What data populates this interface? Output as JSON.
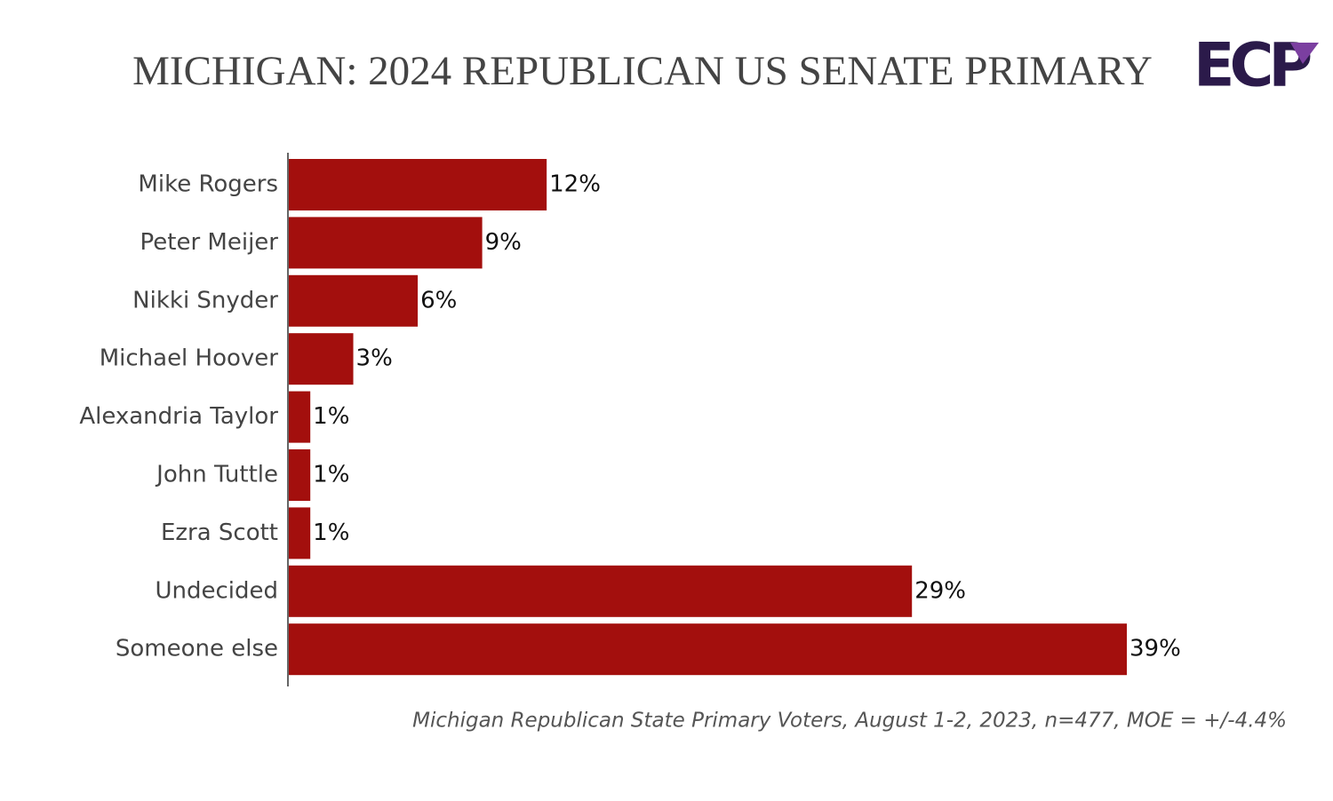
{
  "chart_data": {
    "type": "bar",
    "orientation": "horizontal",
    "title": "MICHIGAN: 2024 REPUBLICAN US SENATE PRIMARY",
    "logo": "ECP",
    "categories": [
      "Mike Rogers",
      "Peter Meijer",
      "Nikki Snyder",
      "Michael Hoover",
      "Alexandria Taylor",
      "John Tuttle",
      "Ezra Scott",
      "Undecided",
      "Someone else"
    ],
    "values": [
      12,
      9,
      6,
      3,
      1,
      1,
      1,
      29,
      39
    ],
    "value_labels": [
      "12%",
      "9%",
      "6%",
      "3%",
      "1%",
      "1%",
      "1%",
      "29%",
      "39%"
    ],
    "color": "#a30f0d",
    "note": "Michigan Republican State Primary Voters, August 1-2, 2023, n=477, MOE = +/-4.4%"
  }
}
